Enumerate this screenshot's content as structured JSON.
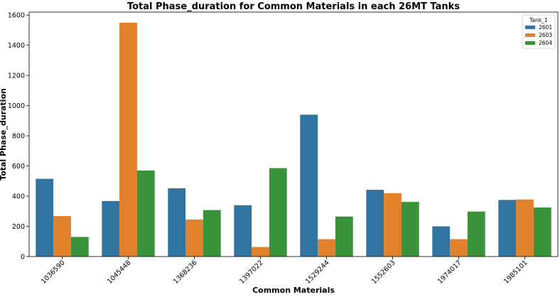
{
  "chart_data": {
    "type": "bar",
    "title": "Total Phase_duration for Common Materials in each 26MT Tanks",
    "xlabel": "Common Materials",
    "ylabel": "Total Phase_duration",
    "ylim": [
      0,
      1620
    ],
    "yticks": [
      "0",
      "200",
      "400",
      "600",
      "800",
      "1000",
      "1200",
      "1400",
      "1600"
    ],
    "categories": [
      "1036590",
      "1045448",
      "1368236",
      "1397022",
      "1529244",
      "1552603",
      "1974017",
      "1985101"
    ],
    "legend": {
      "title": "Tank_1",
      "placement": "top-right"
    },
    "series": [
      {
        "name": "2601",
        "color": "#3274a1",
        "values": [
          515,
          368,
          452,
          340,
          940,
          442,
          200,
          375
        ]
      },
      {
        "name": "2603",
        "color": "#e1812c",
        "values": [
          268,
          1550,
          245,
          63,
          115,
          420,
          115,
          378
        ]
      },
      {
        "name": "2604",
        "color": "#3a923a",
        "values": [
          130,
          570,
          308,
          586,
          265,
          362,
          298,
          325
        ]
      }
    ]
  }
}
